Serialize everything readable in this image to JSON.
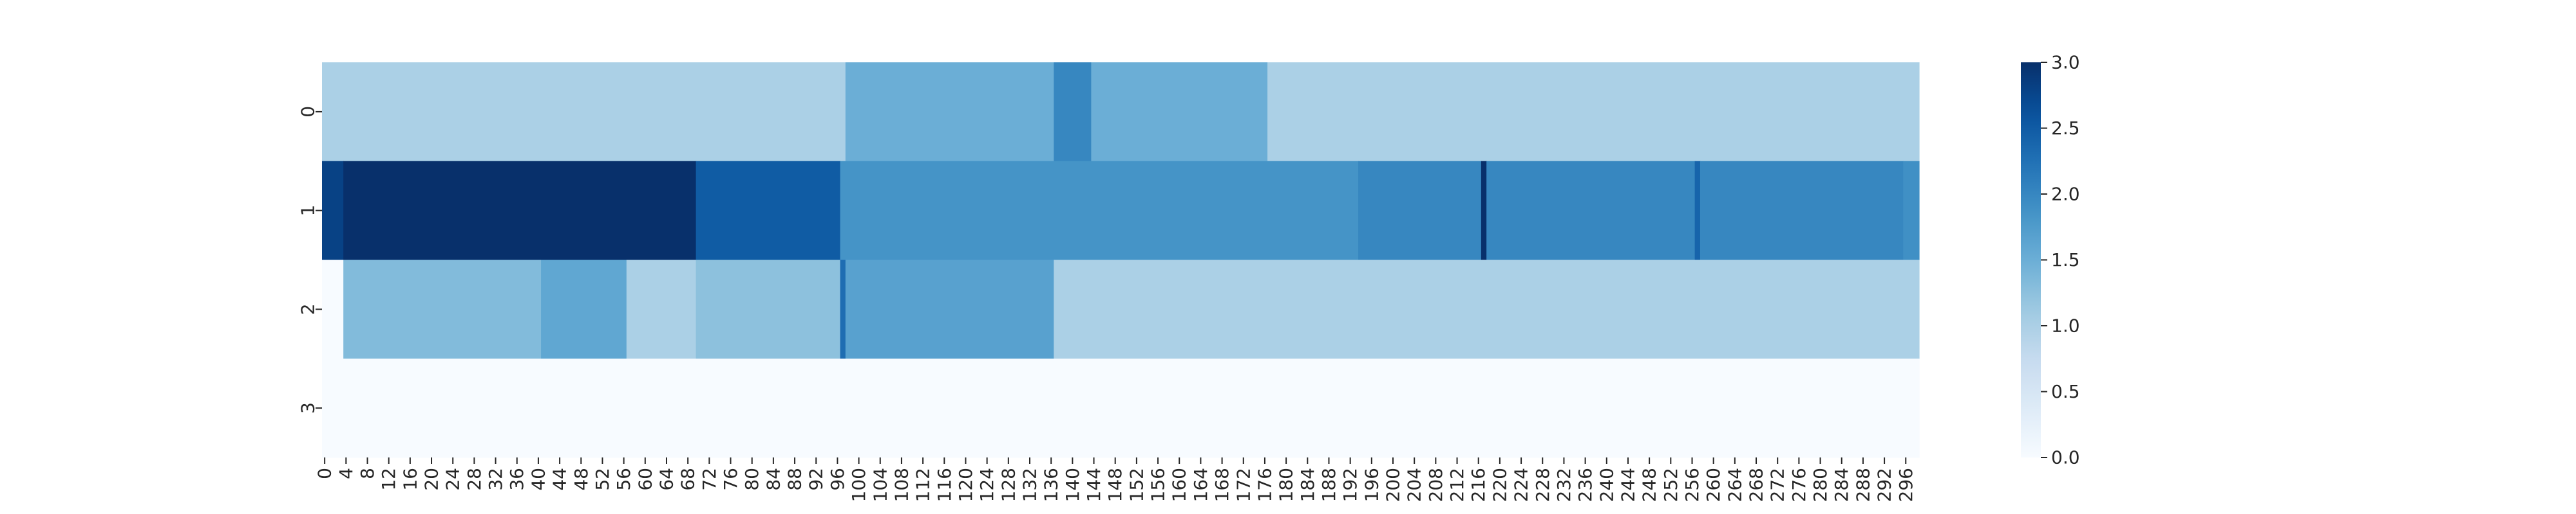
{
  "chart_data": {
    "type": "heatmap",
    "title": "",
    "xlabel": "",
    "ylabel": "",
    "colormap": "Blues",
    "vmin": 0,
    "vmax": 3,
    "x_ticks": [
      0,
      4,
      8,
      12,
      16,
      20,
      24,
      28,
      32,
      36,
      40,
      44,
      48,
      52,
      56,
      60,
      64,
      68,
      72,
      76,
      80,
      84,
      88,
      92,
      96,
      100,
      104,
      108,
      112,
      116,
      120,
      124,
      128,
      132,
      136,
      140,
      144,
      148,
      152,
      156,
      160,
      164,
      168,
      172,
      176,
      180,
      184,
      188,
      192,
      196,
      200,
      204,
      208,
      212,
      216,
      220,
      224,
      228,
      232,
      236,
      240,
      244,
      248,
      252,
      256,
      260,
      264,
      268,
      272,
      276,
      280,
      284,
      288,
      292,
      296
    ],
    "x_count": 299,
    "y_ticks": [
      "0",
      "1",
      "2",
      "3"
    ],
    "colorbar_ticks": [
      "0.0",
      "0.5",
      "1.0",
      "1.5",
      "2.0",
      "2.5",
      "3.0"
    ],
    "rows": [
      {
        "label": "0",
        "segments": [
          {
            "start": 0,
            "end": 98,
            "value": 1.0
          },
          {
            "start": 98,
            "end": 137,
            "value": 1.5
          },
          {
            "start": 137,
            "end": 144,
            "value": 2.0
          },
          {
            "start": 144,
            "end": 177,
            "value": 1.5
          },
          {
            "start": 177,
            "end": 299,
            "value": 1.0
          }
        ]
      },
      {
        "label": "1",
        "segments": [
          {
            "start": 0,
            "end": 4,
            "value": 2.8
          },
          {
            "start": 4,
            "end": 70,
            "value": 3.0
          },
          {
            "start": 70,
            "end": 97,
            "value": 2.5
          },
          {
            "start": 97,
            "end": 194,
            "value": 1.85
          },
          {
            "start": 194,
            "end": 217,
            "value": 2.0
          },
          {
            "start": 217,
            "end": 218,
            "value": 3.0
          },
          {
            "start": 218,
            "end": 257,
            "value": 2.0
          },
          {
            "start": 257,
            "end": 258,
            "value": 2.4
          },
          {
            "start": 258,
            "end": 296,
            "value": 2.0
          },
          {
            "start": 296,
            "end": 299,
            "value": 1.9
          }
        ]
      },
      {
        "label": "2",
        "segments": [
          {
            "start": 0,
            "end": 4,
            "value": 0.0
          },
          {
            "start": 4,
            "end": 41,
            "value": 1.33
          },
          {
            "start": 41,
            "end": 57,
            "value": 1.6
          },
          {
            "start": 57,
            "end": 70,
            "value": 1.0
          },
          {
            "start": 70,
            "end": 97,
            "value": 1.25
          },
          {
            "start": 97,
            "end": 98,
            "value": 2.3
          },
          {
            "start": 98,
            "end": 137,
            "value": 1.67
          },
          {
            "start": 137,
            "end": 299,
            "value": 1.0
          }
        ]
      },
      {
        "label": "3",
        "segments": [
          {
            "start": 0,
            "end": 299,
            "value": 0.0
          }
        ]
      }
    ]
  }
}
